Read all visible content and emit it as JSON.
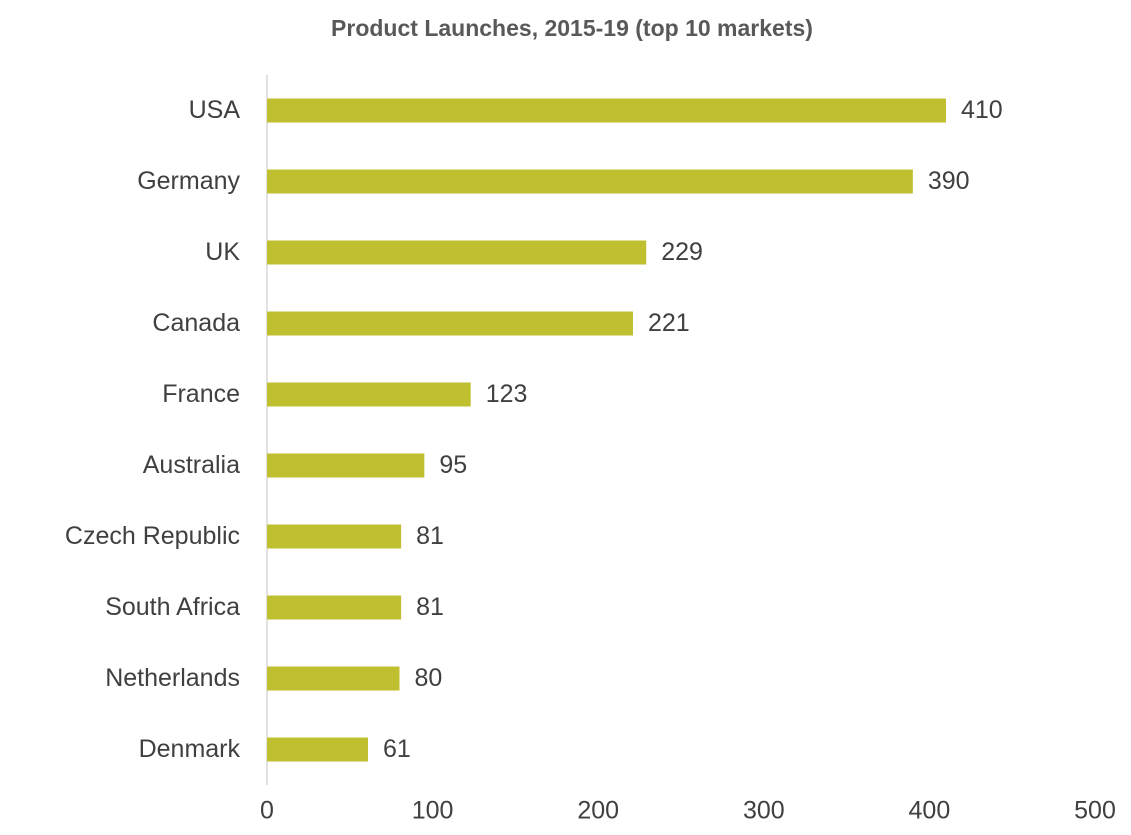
{
  "chart_data": {
    "type": "bar",
    "orientation": "horizontal",
    "title": "Product Launches, 2015-19 (top 10 markets)",
    "categories": [
      "USA",
      "Germany",
      "UK",
      "Canada",
      "France",
      "Australia",
      "Czech Republic",
      "South Africa",
      "Netherlands",
      "Denmark"
    ],
    "values": [
      410,
      390,
      229,
      221,
      123,
      95,
      81,
      81,
      80,
      61
    ],
    "color": "#c0bf30",
    "xlim": [
      0,
      500
    ],
    "xticks": [
      0,
      100,
      200,
      300,
      400,
      500
    ],
    "grid": false
  }
}
